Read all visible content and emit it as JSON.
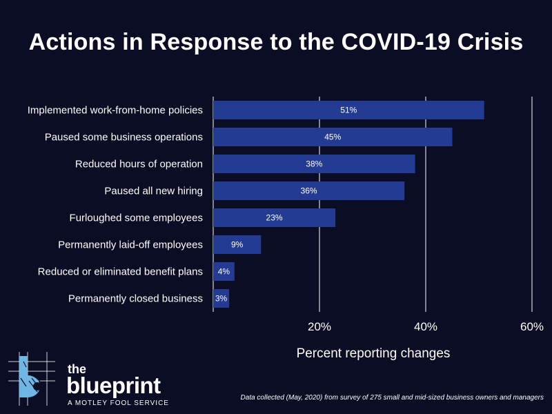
{
  "title": "Actions in Response to the COVID-19 Crisis",
  "footnote": "Data collected (May, 2020) from survey of 275 small and mid-sized business owners and managers",
  "brand": {
    "the": "the",
    "word": "blueprint",
    "tagline": "A MOTLEY FOOL SERVICE",
    "accent_color": "#6fb6e3"
  },
  "chart_data": {
    "type": "bar",
    "orientation": "horizontal",
    "title": "Actions in Response to the COVID-19 Crisis",
    "xlabel": "Percent reporting changes",
    "ylabel": "",
    "categories": [
      "Implemented work-from-home policies",
      "Paused some business operations",
      "Reduced hours of operation",
      "Paused all new hiring",
      "Furloughed some employees",
      "Permanently laid-off employees",
      "Reduced or eliminated benefit plans",
      "Permanently closed business"
    ],
    "values": [
      51,
      45,
      38,
      36,
      23,
      9,
      4,
      3
    ],
    "value_labels": [
      "51%",
      "45%",
      "38%",
      "36%",
      "23%",
      "9%",
      "4%",
      "3%"
    ],
    "xlim": [
      0,
      60
    ],
    "xticks": [
      20,
      40,
      60
    ],
    "xtick_labels": [
      "20%",
      "40%",
      "60%"
    ],
    "grid": "vertical",
    "bar_color": "#233b93",
    "background_color": "#0a0d24"
  }
}
